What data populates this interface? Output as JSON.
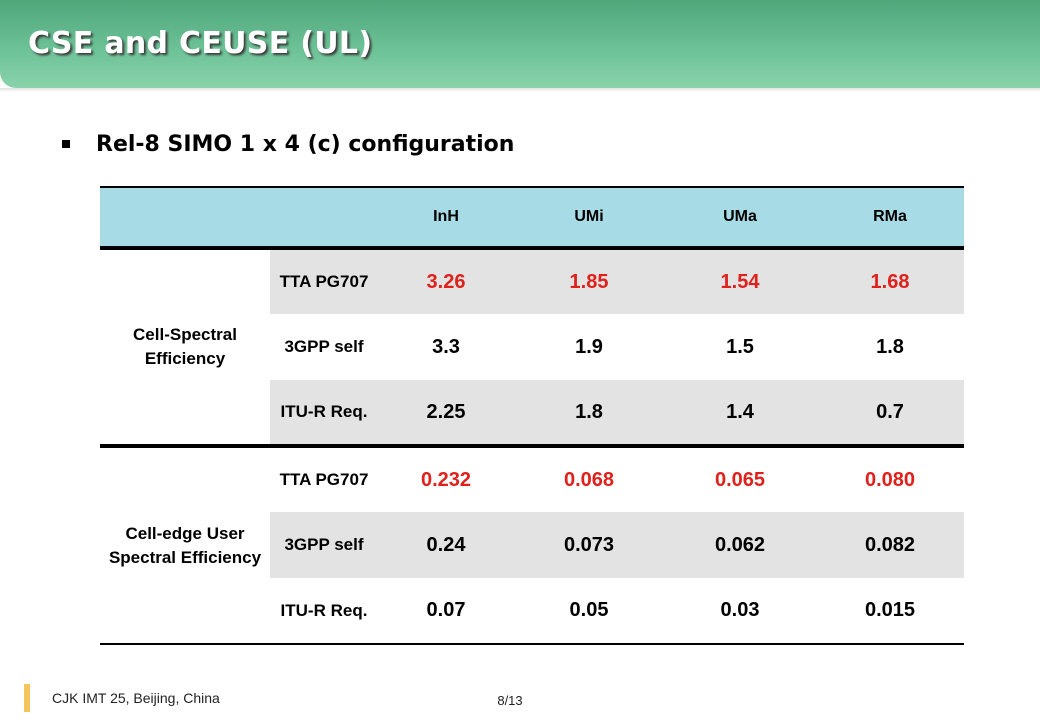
{
  "slide": {
    "title": "CSE and CEUSE (UL)",
    "bullet": "Rel-8 SIMO 1 x 4 (c) configuration"
  },
  "table": {
    "headers": [
      "InH",
      "UMi",
      "UMa",
      "RMa"
    ],
    "groups": [
      {
        "label": "Cell-Spectral Efficiency",
        "rows": [
          {
            "source": "TTA PG707",
            "values": [
              "3.26",
              "1.85",
              "1.54",
              "1.68"
            ]
          },
          {
            "source": "3GPP self",
            "values": [
              "3.3",
              "1.9",
              "1.5",
              "1.8"
            ]
          },
          {
            "source": "ITU-R Req.",
            "values": [
              "2.25",
              "1.8",
              "1.4",
              "0.7"
            ]
          }
        ]
      },
      {
        "label": "Cell-edge User Spectral Efficiency",
        "rows": [
          {
            "source": "TTA PG707",
            "values": [
              "0.232",
              "0.068",
              "0.065",
              "0.080"
            ]
          },
          {
            "source": "3GPP self",
            "values": [
              "0.24",
              "0.073",
              "0.062",
              "0.082"
            ]
          },
          {
            "source": "ITU-R Req.",
            "values": [
              "0.07",
              "0.05",
              "0.03",
              "0.015"
            ]
          }
        ]
      }
    ]
  },
  "footer": {
    "text": "CJK IMT 25, Beijing, China",
    "page": "8/13"
  },
  "colors": {
    "title_green": "#6cc196",
    "header_blue": "#a7dbe6",
    "highlight_red": "#e0201b",
    "row_alt_gray": "#e3e3e3",
    "footer_accent": "#f3c55a"
  }
}
